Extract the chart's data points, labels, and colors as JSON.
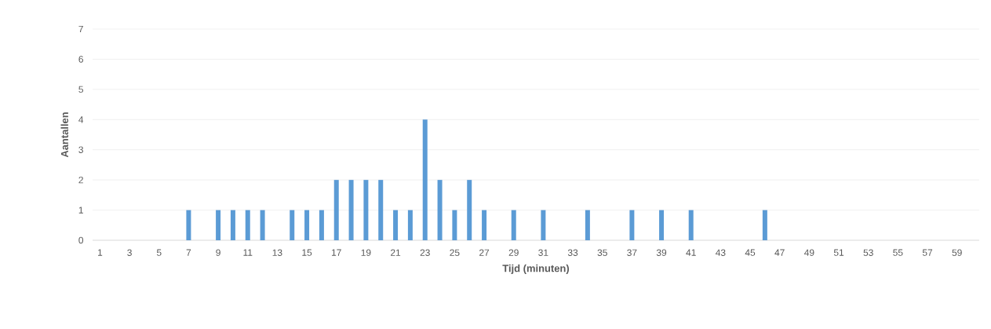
{
  "chart_data": {
    "type": "bar",
    "xlabel": "Tijd (minuten)",
    "ylabel": "Aantallen",
    "categories": [
      "1",
      null,
      "3",
      null,
      "5",
      null,
      "7",
      null,
      "9",
      null,
      "11",
      null,
      "13",
      null,
      "15",
      null,
      "17",
      null,
      "19",
      null,
      "21",
      null,
      "23",
      null,
      "25",
      null,
      "27",
      null,
      "29",
      null,
      "31",
      null,
      "33",
      null,
      "35",
      null,
      "37",
      null,
      "39",
      null,
      "41",
      null,
      "43",
      null,
      "45",
      null,
      "47",
      null,
      "49",
      null,
      "51",
      null,
      "53",
      null,
      "55",
      null,
      "57",
      null,
      "59",
      null
    ],
    "values": [
      0,
      0,
      0,
      0,
      0,
      0,
      1,
      0,
      1,
      1,
      1,
      1,
      0,
      1,
      1,
      1,
      2,
      2,
      2,
      2,
      1,
      1,
      4,
      2,
      1,
      2,
      1,
      0,
      1,
      0,
      1,
      0,
      0,
      1,
      0,
      0,
      1,
      0,
      1,
      0,
      1,
      0,
      0,
      0,
      0,
      1,
      0,
      0,
      0,
      0,
      0,
      0,
      0,
      0,
      0,
      0,
      0,
      0,
      0,
      0
    ],
    "color": "#5b9bd5",
    "ylim": [
      0,
      7
    ],
    "yticks": [
      0,
      1,
      2,
      3,
      4,
      5,
      6,
      7
    ],
    "grid": "y"
  }
}
